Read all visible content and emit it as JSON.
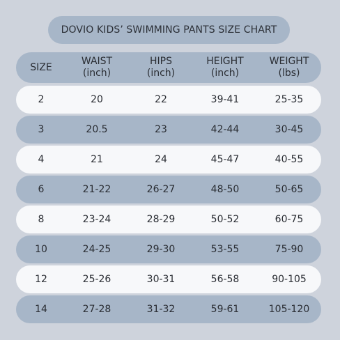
{
  "title": "DOVIO KIDS’  SWIMMING PANTS SIZE CHART",
  "header": {
    "size": "SIZE",
    "waist": "WAIST",
    "waist_unit": "(inch)",
    "hips": "HIPS",
    "hips_unit": "(inch)",
    "height": "HEIGHT",
    "height_unit": "(inch)",
    "weight": "WEIGHT",
    "weight_unit": "(lbs)"
  },
  "rows": [
    {
      "size": "2",
      "waist": "20",
      "hips": "22",
      "height": "39-41",
      "weight": "25-35"
    },
    {
      "size": "3",
      "waist": "20.5",
      "hips": "23",
      "height": "42-44",
      "weight": "30-45"
    },
    {
      "size": "4",
      "waist": "21",
      "hips": "24",
      "height": "45-47",
      "weight": "40-55"
    },
    {
      "size": "6",
      "waist": "21-22",
      "hips": "26-27",
      "height": "48-50",
      "weight": "50-65"
    },
    {
      "size": "8",
      "waist": "23-24",
      "hips": "28-29",
      "height": "50-52",
      "weight": "60-75"
    },
    {
      "size": "10",
      "waist": "24-25",
      "hips": "29-30",
      "height": "53-55",
      "weight": "75-90"
    },
    {
      "size": "12",
      "waist": "25-26",
      "hips": "30-31",
      "height": "56-58",
      "weight": "90-105"
    },
    {
      "size": "14",
      "waist": "27-28",
      "hips": "31-32",
      "height": "59-61",
      "weight": "105-120"
    }
  ],
  "colors": {
    "background": "#ced3dc",
    "blue_pill": "#a7b6c8",
    "white_pill": "#f7f8fa",
    "text": "#2a2d33"
  }
}
